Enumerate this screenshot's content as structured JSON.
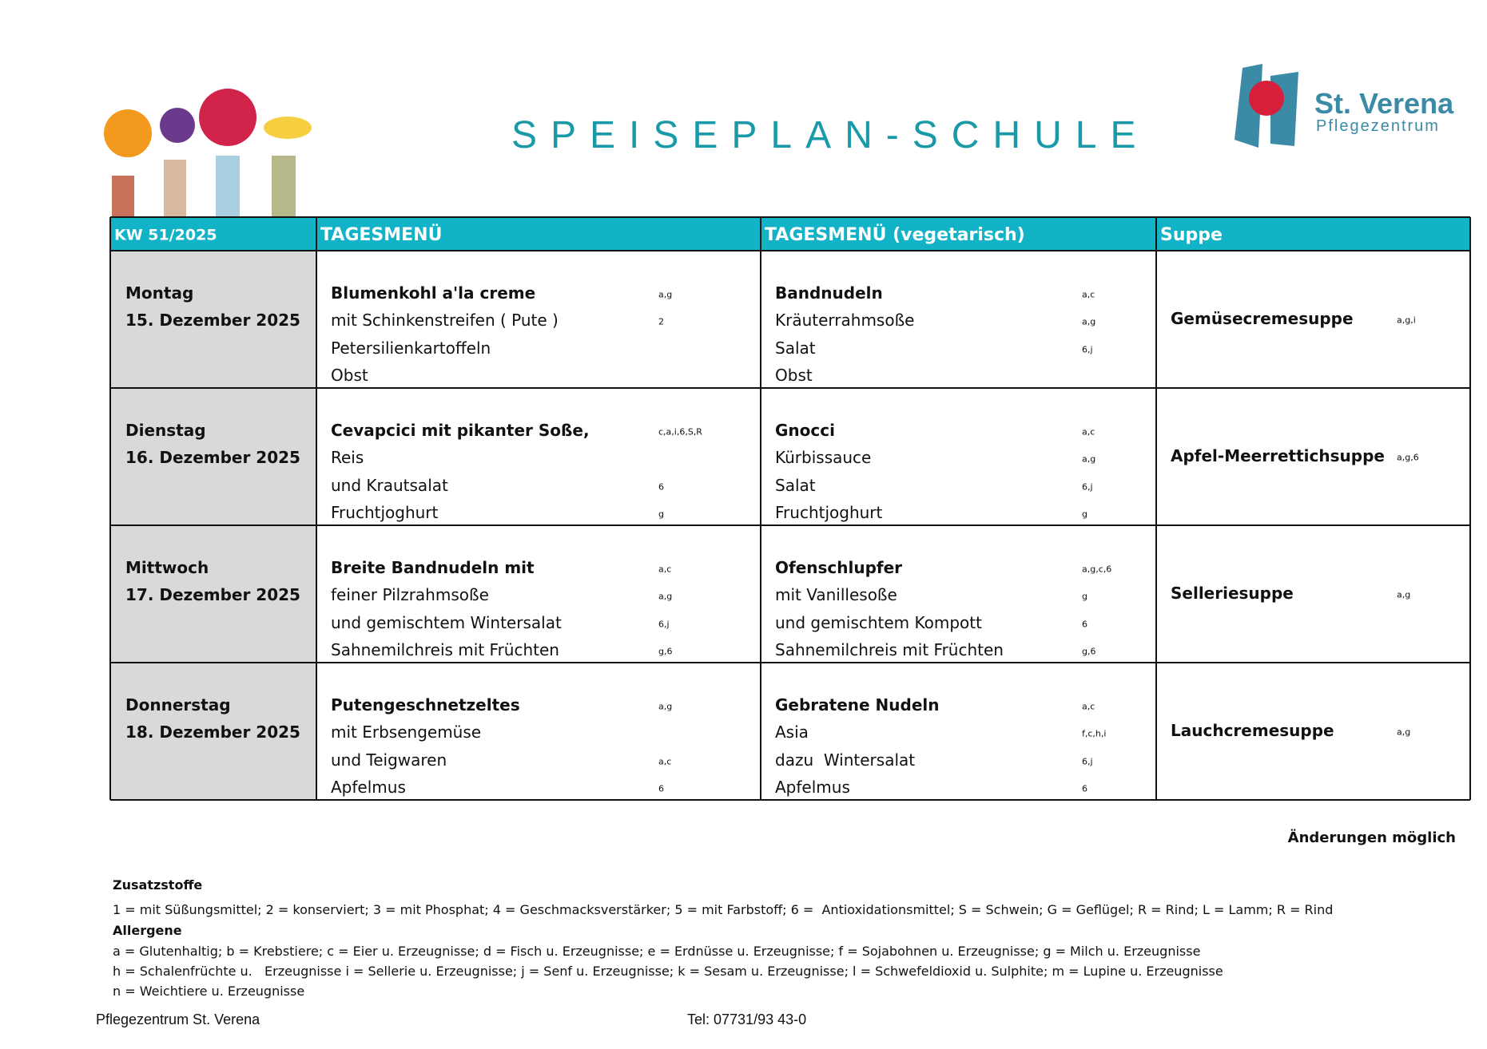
{
  "header": {
    "title": "SPEISEPLAN-SCHULE",
    "logo_name": "St. Verena",
    "logo_subtitle": "Pflegezentrum"
  },
  "table": {
    "columns": [
      "KW 51/2025",
      "TAGESMENÜ",
      "TAGESMENÜ (vegetarisch)",
      "Suppe"
    ],
    "rows": [
      {
        "day": "Montag",
        "date": "15. Dezember 2025",
        "menu": [
          {
            "text": "Blumenkohl a'la creme",
            "allergens": "a,g"
          },
          {
            "text": "mit Schinkenstreifen ( Pute )",
            "allergens": "2"
          },
          {
            "text": "Petersilienkartoffeln"
          },
          {
            "text": "Obst"
          }
        ],
        "vegetarian": [
          {
            "text": "Bandnudeln",
            "allergens": "a,c"
          },
          {
            "text": "Kräuterrahmsoße",
            "allergens": "a,g"
          },
          {
            "text": "Salat",
            "allergens": "6,j"
          },
          {
            "text": "Obst"
          }
        ],
        "soup": {
          "text": "Gemüsecremesuppe",
          "allergens": "a,g,i"
        }
      },
      {
        "day": "Dienstag",
        "date": "16. Dezember 2025",
        "menu": [
          {
            "text": "Cevapcici mit pikanter Soße,",
            "allergens": "c,a,i,6,S,R"
          },
          {
            "text": "Reis"
          },
          {
            "text": "und Krautsalat",
            "allergens": "6"
          },
          {
            "text": "Fruchtjoghurt",
            "allergens": "g"
          }
        ],
        "vegetarian": [
          {
            "text": "Gnocci",
            "allergens": "a,c"
          },
          {
            "text": "Kürbissauce",
            "allergens": "a,g"
          },
          {
            "text": "Salat",
            "allergens": "6,j"
          },
          {
            "text": "Fruchtjoghurt",
            "allergens": "g"
          }
        ],
        "soup": {
          "text": "Apfel-Meerrettichsuppe",
          "allergens": "a,g,6"
        }
      },
      {
        "day": "Mittwoch",
        "date": "17. Dezember 2025",
        "menu": [
          {
            "text": "Breite Bandnudeln mit",
            "allergens": "a,c"
          },
          {
            "text": "feiner Pilzrahmsoße",
            "allergens": "a,g"
          },
          {
            "text": "und gemischtem Wintersalat",
            "allergens": "6,j"
          },
          {
            "text": "Sahnemilchreis mit Früchten",
            "allergens": "g,6"
          }
        ],
        "vegetarian": [
          {
            "text": "Ofenschlupfer",
            "allergens": "a,g,c,6"
          },
          {
            "text": "mit Vanillesoße",
            "allergens": "g"
          },
          {
            "text": "und gemischtem Kompott",
            "allergens": "6"
          },
          {
            "text": "Sahnemilchreis mit Früchten",
            "allergens": "g,6"
          }
        ],
        "soup": {
          "text": "Selleriesuppe",
          "allergens": "a,g"
        }
      },
      {
        "day": "Donnerstag",
        "date": "18. Dezember 2025",
        "menu": [
          {
            "text": "Putengeschnetzeltes",
            "allergens": "a,g"
          },
          {
            "text": "mit Erbsengemüse"
          },
          {
            "text": "und Teigwaren",
            "allergens": "a,c"
          },
          {
            "text": "Apfelmus",
            "allergens": "6"
          }
        ],
        "vegetarian": [
          {
            "text": "Gebratene Nudeln",
            "allergens": "a,c"
          },
          {
            "text": "Asia",
            "allergens": "f,c,h,i"
          },
          {
            "text": "dazu  Wintersalat",
            "allergens": "6,j"
          },
          {
            "text": "Apfelmus",
            "allergens": "6"
          }
        ],
        "soup": {
          "text": "Lauchcremesuppe",
          "allergens": "a,g"
        }
      }
    ]
  },
  "notice": "Änderungen möglich",
  "notes": {
    "additives_title": "Zusatzstoffe",
    "additives": "1 = mit Süßungsmittel; 2 = konserviert; 3 = mit Phosphat; 4 = Geschmacksverstärker; 5 = mit Farbstoff; 6 =  Antioxidationsmittel; S = Schwein; G = Geflügel; R = Rind; L = Lamm; R = Rind",
    "allergens_title": "Allergene",
    "allergens": [
      "a = Glutenhaltig; b = Krebstiere; c = Eier u. Erzeugnisse; d = Fisch u. Erzeugnisse; e = Erdnüsse u. Erzeugnisse; f = Sojabohnen u. Erzeugnisse; g = Milch u. Erzeugnisse",
      "h = Schalenfrüchte u.   Erzeugnisse i = Sellerie u. Erzeugnisse; j = Senf u. Erzeugnisse; k = Sesam u. Erzeugnisse; l = Schwefeldioxid u. Sulphite; m = Lupine u. Erzeugnisse",
      "n = Weichtiere u. Erzeugnisse"
    ]
  },
  "footer": {
    "name": "Pflegezentrum St. Verena",
    "phone": "Tel: 07731/93 43-0"
  }
}
